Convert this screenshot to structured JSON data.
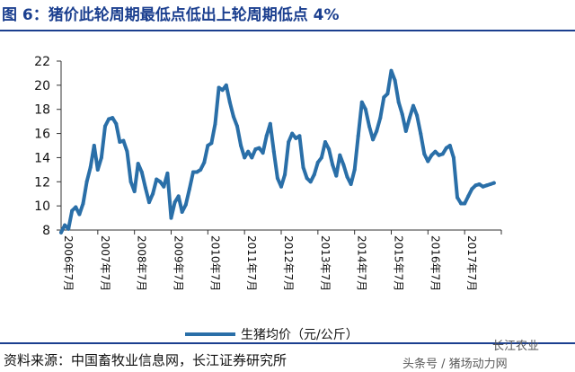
{
  "title": "图 6：猪价此轮周期最低点低出上轮周期低点 4%",
  "source": "资料来源：中国畜牧业信息网，长江证券研究所",
  "watermark": {
    "line1": "长江农业",
    "line2": "头条号 / 猪场动力网"
  },
  "colors": {
    "title": "#1b3f8f",
    "series": "#2a6fa8",
    "rules": "#1b3f8f"
  },
  "chart_data": {
    "type": "line",
    "title": "",
    "xlabel": "",
    "ylabel": "",
    "ylim": [
      8,
      22
    ],
    "yticks": [
      8,
      10,
      12,
      14,
      16,
      18,
      20,
      22
    ],
    "xlim": [
      2006.5,
      2018.5
    ],
    "xticks": [
      {
        "x": 2006.5,
        "label": "2006年7月"
      },
      {
        "x": 2007.5,
        "label": "2007年7月"
      },
      {
        "x": 2008.5,
        "label": "2008年7月"
      },
      {
        "x": 2009.5,
        "label": "2009年7月"
      },
      {
        "x": 2010.5,
        "label": "2010年7月"
      },
      {
        "x": 2011.5,
        "label": "2011年7月"
      },
      {
        "x": 2012.5,
        "label": "2012年7月"
      },
      {
        "x": 2013.5,
        "label": "2013年7月"
      },
      {
        "x": 2014.5,
        "label": "2014年7月"
      },
      {
        "x": 2015.5,
        "label": "2015年7月"
      },
      {
        "x": 2016.5,
        "label": "2016年7月"
      },
      {
        "x": 2017.5,
        "label": "2017年7月"
      }
    ],
    "grid": false,
    "legend": "bottom-center",
    "series": [
      {
        "name": "生猪均价（元/公斤）",
        "x": [
          2006.5,
          2006.6,
          2006.7,
          2006.8,
          2006.9,
          2007.0,
          2007.1,
          2007.2,
          2007.3,
          2007.4,
          2007.5,
          2007.6,
          2007.7,
          2007.8,
          2007.9,
          2008.0,
          2008.1,
          2008.2,
          2008.3,
          2008.4,
          2008.5,
          2008.6,
          2008.7,
          2008.8,
          2008.9,
          2009.0,
          2009.1,
          2009.2,
          2009.3,
          2009.4,
          2009.5,
          2009.6,
          2009.7,
          2009.8,
          2009.9,
          2010.0,
          2010.1,
          2010.2,
          2010.3,
          2010.4,
          2010.5,
          2010.6,
          2010.7,
          2010.8,
          2010.9,
          2011.0,
          2011.1,
          2011.2,
          2011.3,
          2011.4,
          2011.5,
          2011.6,
          2011.7,
          2011.8,
          2011.9,
          2012.0,
          2012.1,
          2012.2,
          2012.3,
          2012.4,
          2012.5,
          2012.6,
          2012.7,
          2012.8,
          2012.9,
          2013.0,
          2013.1,
          2013.2,
          2013.3,
          2013.4,
          2013.5,
          2013.6,
          2013.7,
          2013.8,
          2013.9,
          2014.0,
          2014.1,
          2014.2,
          2014.3,
          2014.4,
          2014.5,
          2014.6,
          2014.7,
          2014.8,
          2014.9,
          2015.0,
          2015.1,
          2015.2,
          2015.3,
          2015.4,
          2015.5,
          2015.6,
          2015.7,
          2015.8,
          2015.9,
          2016.0,
          2016.1,
          2016.2,
          2016.3,
          2016.4,
          2016.5,
          2016.6,
          2016.7,
          2016.8,
          2016.9,
          2017.0,
          2017.1,
          2017.2,
          2017.3,
          2017.4,
          2017.5,
          2017.6,
          2017.7,
          2017.8,
          2017.9,
          2018.0,
          2018.1,
          2018.2,
          2018.3
        ],
        "values": [
          7.8,
          8.4,
          8.1,
          9.6,
          9.9,
          9.3,
          10.2,
          12.0,
          13.2,
          15.0,
          13.0,
          14.0,
          16.6,
          17.2,
          17.3,
          16.8,
          15.3,
          15.4,
          14.5,
          12.0,
          11.2,
          13.5,
          12.8,
          11.5,
          10.3,
          11.0,
          12.2,
          12.0,
          11.6,
          12.7,
          9.0,
          10.3,
          10.8,
          9.5,
          10.1,
          11.4,
          12.8,
          12.8,
          13.0,
          13.6,
          15.0,
          15.2,
          16.8,
          19.8,
          19.6,
          20.0,
          18.6,
          17.4,
          16.6,
          15.0,
          14.0,
          14.5,
          14.0,
          14.7,
          14.8,
          14.4,
          15.8,
          16.8,
          14.5,
          12.3,
          11.6,
          12.6,
          15.3,
          16.0,
          15.6,
          15.8,
          13.2,
          12.3,
          12.0,
          12.6,
          13.6,
          14.0,
          15.3,
          14.7,
          13.4,
          12.5,
          14.2,
          13.4,
          12.4,
          11.8,
          13.0,
          15.8,
          18.6,
          18.0,
          16.6,
          15.5,
          16.2,
          17.3,
          19.0,
          19.3,
          21.2,
          20.4,
          18.6,
          17.6,
          16.2,
          17.3,
          18.3,
          17.5,
          16.0,
          14.3,
          13.7,
          14.2,
          14.5,
          14.2,
          14.3,
          14.8,
          15.0,
          14.0,
          10.7,
          10.2,
          10.2,
          10.8,
          11.4,
          11.7,
          11.8,
          11.6,
          11.7,
          11.8,
          11.9
        ]
      }
    ]
  }
}
